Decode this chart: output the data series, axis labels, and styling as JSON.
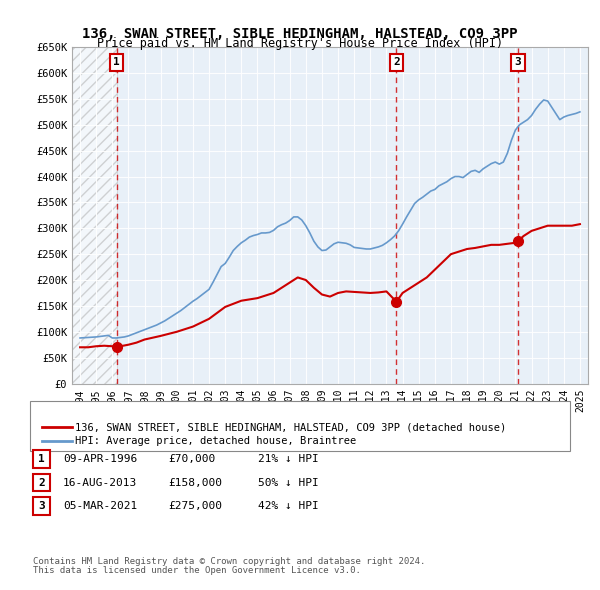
{
  "title": "136, SWAN STREET, SIBLE HEDINGHAM, HALSTEAD, CO9 3PP",
  "subtitle": "Price paid vs. HM Land Registry's House Price Index (HPI)",
  "ylabel": "",
  "ylim": [
    0,
    650000
  ],
  "yticks": [
    0,
    50000,
    100000,
    150000,
    200000,
    250000,
    300000,
    350000,
    400000,
    450000,
    500000,
    550000,
    600000,
    650000
  ],
  "ytick_labels": [
    "£0",
    "£50K",
    "£100K",
    "£150K",
    "£200K",
    "£250K",
    "£300K",
    "£350K",
    "£400K",
    "£450K",
    "£500K",
    "£550K",
    "£600K",
    "£650K"
  ],
  "xlim_start": 1993.5,
  "xlim_end": 2025.5,
  "sale_dates": [
    1996.27,
    2013.62,
    2021.17
  ],
  "sale_prices": [
    70000,
    158000,
    275000
  ],
  "sale_labels": [
    "1",
    "2",
    "3"
  ],
  "sale_info": [
    {
      "label": "1",
      "date": "09-APR-1996",
      "price": "£70,000",
      "hpi": "21% ↓ HPI"
    },
    {
      "label": "2",
      "date": "16-AUG-2013",
      "price": "£158,000",
      "hpi": "50% ↓ HPI"
    },
    {
      "label": "3",
      "date": "05-MAR-2021",
      "price": "£275,000",
      "hpi": "42% ↓ HPI"
    }
  ],
  "hpi_line_color": "#6699cc",
  "price_line_color": "#cc0000",
  "sale_marker_color": "#cc0000",
  "dashed_line_color": "#cc0000",
  "hatch_color": "#cccccc",
  "background_color": "#ffffff",
  "grid_color": "#cccccc",
  "hpi_x": [
    1994,
    1994.25,
    1994.5,
    1994.75,
    1995,
    1995.25,
    1995.5,
    1995.75,
    1996,
    1996.25,
    1996.5,
    1996.75,
    1997,
    1997.25,
    1997.5,
    1997.75,
    1998,
    1998.25,
    1998.5,
    1998.75,
    1999,
    1999.25,
    1999.5,
    1999.75,
    2000,
    2000.25,
    2000.5,
    2000.75,
    2001,
    2001.25,
    2001.5,
    2001.75,
    2002,
    2002.25,
    2002.5,
    2002.75,
    2003,
    2003.25,
    2003.5,
    2003.75,
    2004,
    2004.25,
    2004.5,
    2004.75,
    2005,
    2005.25,
    2005.5,
    2005.75,
    2006,
    2006.25,
    2006.5,
    2006.75,
    2007,
    2007.25,
    2007.5,
    2007.75,
    2008,
    2008.25,
    2008.5,
    2008.75,
    2009,
    2009.25,
    2009.5,
    2009.75,
    2010,
    2010.25,
    2010.5,
    2010.75,
    2011,
    2011.25,
    2011.5,
    2011.75,
    2012,
    2012.25,
    2012.5,
    2012.75,
    2013,
    2013.25,
    2013.5,
    2013.75,
    2014,
    2014.25,
    2014.5,
    2014.75,
    2015,
    2015.25,
    2015.5,
    2015.75,
    2016,
    2016.25,
    2016.5,
    2016.75,
    2017,
    2017.25,
    2017.5,
    2017.75,
    2018,
    2018.25,
    2018.5,
    2018.75,
    2019,
    2019.25,
    2019.5,
    2019.75,
    2020,
    2020.25,
    2020.5,
    2020.75,
    2021,
    2021.25,
    2021.5,
    2021.75,
    2022,
    2022.25,
    2022.5,
    2022.75,
    2023,
    2023.25,
    2023.5,
    2023.75,
    2024,
    2024.25,
    2024.5,
    2024.75,
    2025
  ],
  "hpi_y": [
    88000,
    88500,
    89000,
    89500,
    90000,
    91000,
    92000,
    93000,
    88000,
    88000,
    89000,
    90000,
    92000,
    95000,
    98000,
    101000,
    104000,
    107000,
    110000,
    113000,
    117000,
    121000,
    126000,
    131000,
    136000,
    141000,
    147000,
    153000,
    159000,
    164000,
    170000,
    176000,
    182000,
    196000,
    211000,
    226000,
    232000,
    244000,
    257000,
    265000,
    272000,
    277000,
    283000,
    286000,
    288000,
    291000,
    291000,
    292000,
    296000,
    303000,
    307000,
    310000,
    315000,
    322000,
    322000,
    316000,
    305000,
    291000,
    275000,
    264000,
    257000,
    258000,
    264000,
    270000,
    273000,
    272000,
    271000,
    268000,
    263000,
    262000,
    261000,
    260000,
    260000,
    262000,
    264000,
    267000,
    272000,
    278000,
    285000,
    295000,
    308000,
    322000,
    335000,
    348000,
    355000,
    360000,
    366000,
    372000,
    375000,
    382000,
    386000,
    390000,
    396000,
    400000,
    400000,
    398000,
    404000,
    410000,
    412000,
    408000,
    415000,
    420000,
    425000,
    428000,
    424000,
    428000,
    445000,
    470000,
    490000,
    500000,
    505000,
    510000,
    518000,
    530000,
    540000,
    548000,
    546000,
    534000,
    522000,
    510000,
    515000,
    518000,
    520000,
    522000,
    525000
  ],
  "price_x": [
    1994,
    1994.5,
    1995,
    1995.5,
    1996,
    1996.27,
    1996.5,
    1997,
    1997.5,
    1998,
    1999,
    2000,
    2001,
    2002,
    2003,
    2004,
    2005,
    2006,
    2007,
    2007.5,
    2008,
    2008.5,
    2009,
    2009.5,
    2010,
    2010.5,
    2011,
    2011.5,
    2012,
    2012.5,
    2013,
    2013.62,
    2014,
    2014.5,
    2015,
    2015.5,
    2016,
    2016.5,
    2017,
    2017.5,
    2018,
    2018.5,
    2019,
    2019.5,
    2020,
    2020.5,
    2021,
    2021.17,
    2021.5,
    2022,
    2022.5,
    2023,
    2023.5,
    2024,
    2024.5,
    2025
  ],
  "price_y": [
    70000,
    70000,
    72000,
    73000,
    72000,
    70000,
    72000,
    75000,
    79000,
    85000,
    92000,
    100000,
    110000,
    125000,
    148000,
    160000,
    165000,
    175000,
    195000,
    205000,
    200000,
    185000,
    172000,
    168000,
    175000,
    178000,
    177000,
    176000,
    175000,
    176000,
    178000,
    158000,
    175000,
    185000,
    195000,
    205000,
    220000,
    235000,
    250000,
    255000,
    260000,
    262000,
    265000,
    268000,
    268000,
    270000,
    272000,
    275000,
    285000,
    295000,
    300000,
    305000,
    305000,
    305000,
    305000,
    308000
  ],
  "hatch_end": 1996.27,
  "legend_label_red": "136, SWAN STREET, SIBLE HEDINGHAM, HALSTEAD, CO9 3PP (detached house)",
  "legend_label_blue": "HPI: Average price, detached house, Braintree",
  "footer_line1": "Contains HM Land Registry data © Crown copyright and database right 2024.",
  "footer_line2": "This data is licensed under the Open Government Licence v3.0."
}
